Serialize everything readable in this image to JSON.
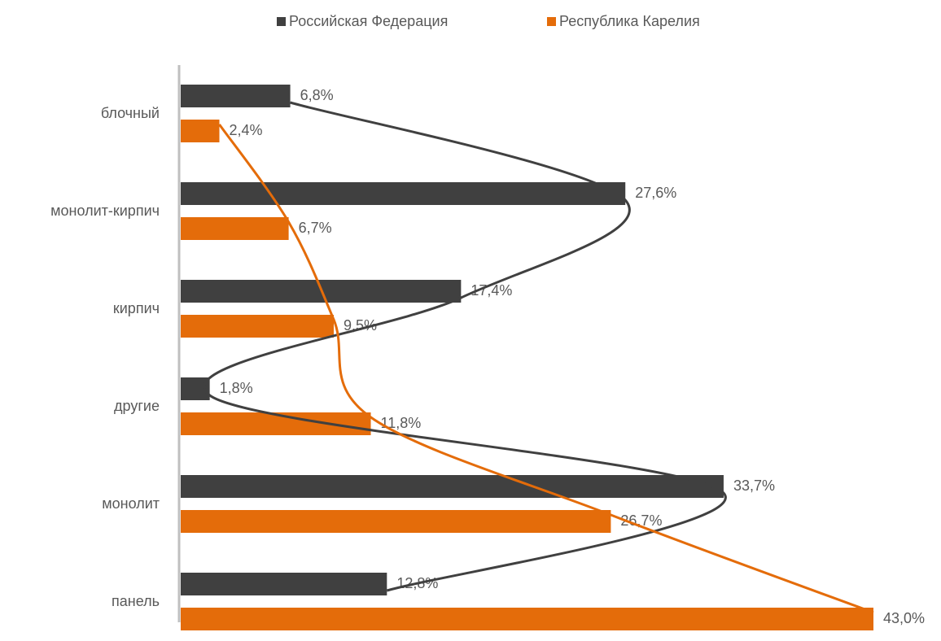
{
  "chart_data": {
    "type": "bar",
    "orientation": "horizontal",
    "categories": [
      "блочный",
      "монолит-кирпич",
      "кирпич",
      "другие",
      "монолит",
      "панель"
    ],
    "series": [
      {
        "name": "Российская Федерация",
        "color": "#404040",
        "values": [
          6.8,
          27.6,
          17.4,
          1.8,
          33.7,
          12.8
        ],
        "value_labels": [
          "6,8%",
          "27,6%",
          "17,4%",
          "1,8%",
          "33,7%",
          "12,8%"
        ]
      },
      {
        "name": "Республика Карелия",
        "color": "#e46c0a",
        "values": [
          2.4,
          6.7,
          9.5,
          11.8,
          26.7,
          43.0
        ],
        "value_labels": [
          "2,4%",
          "6,7%",
          "9,5%",
          "11,8%",
          "26,7%",
          "43,0%"
        ]
      }
    ],
    "legend": "top"
  }
}
